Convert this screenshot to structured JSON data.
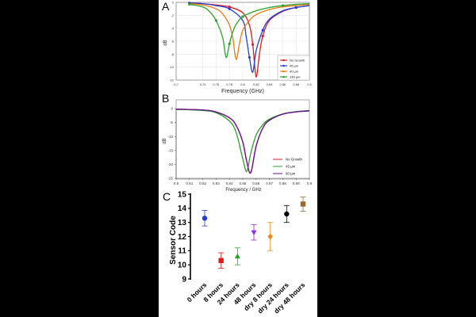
{
  "chart_data": [
    {
      "panel_label": "A",
      "type": "line",
      "xlabel": "Frequency (GHz)",
      "ylabel": "dB",
      "xlim": [
        0.7,
        0.9
      ],
      "ylim": [
        -12,
        0
      ],
      "xticks": [
        "0.7",
        "0.74",
        "0.76",
        "0.78",
        "0.8",
        "0.82",
        "0.84",
        "0.86",
        "0.88",
        "0.9"
      ],
      "yticks": [
        "0",
        "-2",
        "-4",
        "-6",
        "-8",
        "-10",
        "-12"
      ],
      "grid": true,
      "legend_position": "bottom-right",
      "series": [
        {
          "name": "No Growth",
          "color": "#e01b1b",
          "marker": "circle",
          "x": [
            0.72,
            0.74,
            0.76,
            0.78,
            0.8,
            0.81,
            0.815,
            0.82,
            0.825,
            0.83,
            0.84,
            0.86,
            0.88,
            0.9
          ],
          "y": [
            -0.1,
            -0.2,
            -0.4,
            -0.7,
            -1.6,
            -3.5,
            -6.5,
            -11.5,
            -8.0,
            -5.2,
            -2.8,
            -1.4,
            -0.8,
            -0.5
          ]
        },
        {
          "name": "45 µm",
          "color": "#1f3fd6",
          "marker": "circle",
          "x": [
            0.72,
            0.74,
            0.76,
            0.78,
            0.8,
            0.805,
            0.81,
            0.815,
            0.82,
            0.83,
            0.84,
            0.86,
            0.88,
            0.9
          ],
          "y": [
            -0.1,
            -0.2,
            -0.5,
            -1.0,
            -2.8,
            -5.2,
            -8.5,
            -10.8,
            -7.5,
            -4.3,
            -2.6,
            -1.3,
            -0.8,
            -0.5
          ]
        },
        {
          "name": "90 µm",
          "color": "#f07a10",
          "marker": "none",
          "x": [
            0.72,
            0.74,
            0.76,
            0.77,
            0.78,
            0.785,
            0.79,
            0.795,
            0.8,
            0.81,
            0.82,
            0.84,
            0.86,
            0.88,
            0.9
          ],
          "y": [
            -0.2,
            -0.4,
            -1.0,
            -1.8,
            -3.5,
            -5.5,
            -8.8,
            -6.4,
            -4.3,
            -2.8,
            -1.9,
            -1.1,
            -0.7,
            -0.5,
            -0.3
          ]
        },
        {
          "name": "145 µm",
          "color": "#28a428",
          "marker": "circle",
          "x": [
            0.72,
            0.74,
            0.75,
            0.76,
            0.77,
            0.775,
            0.78,
            0.785,
            0.79,
            0.8,
            0.82,
            0.84,
            0.86,
            0.88,
            0.9
          ],
          "y": [
            -0.3,
            -0.7,
            -1.4,
            -2.8,
            -5.5,
            -8.5,
            -6.4,
            -4.6,
            -3.4,
            -2.2,
            -1.3,
            -0.8,
            -0.5,
            -0.3,
            -0.2
          ]
        }
      ]
    },
    {
      "panel_label": "B",
      "type": "line",
      "xlabel": "Frequency / GHz",
      "ylabel": "dB",
      "xlim": [
        0.8,
        0.9
      ],
      "ylim": [
        -25,
        0
      ],
      "xticks": [
        "0.8",
        "0.81",
        "0.82",
        "0.83",
        "0.84",
        "0.85",
        "0.86",
        "0.87",
        "0.88",
        "0.89",
        "0.9"
      ],
      "yticks": [
        "0",
        "-5",
        "-10",
        "-15",
        "-20",
        "-25"
      ],
      "grid": false,
      "legend_position": "bottom-right",
      "series": [
        {
          "name": "No Growth",
          "color": "#e01b1b",
          "x": [
            0.8,
            0.82,
            0.83,
            0.84,
            0.845,
            0.85,
            0.853,
            0.856,
            0.86,
            0.865,
            0.87,
            0.88,
            0.89,
            0.9
          ],
          "y": [
            -0.2,
            -0.5,
            -1.2,
            -3.3,
            -6.0,
            -12.0,
            -19.0,
            -23.0,
            -13.5,
            -7.0,
            -4.2,
            -2.0,
            -1.2,
            -0.8
          ]
        },
        {
          "name": "45 µm",
          "color": "#2aa02a",
          "x": [
            0.8,
            0.82,
            0.83,
            0.84,
            0.845,
            0.85,
            0.853,
            0.856,
            0.86,
            0.865,
            0.87,
            0.88,
            0.89,
            0.9
          ],
          "y": [
            -0.3,
            -0.7,
            -1.5,
            -4.5,
            -8.5,
            -18.0,
            -22.5,
            -16.0,
            -9.5,
            -5.8,
            -3.8,
            -1.9,
            -1.1,
            -0.7
          ]
        },
        {
          "name": "90 µm",
          "color": "#6a0d9a",
          "x": [
            0.8,
            0.82,
            0.83,
            0.84,
            0.845,
            0.85,
            0.853,
            0.856,
            0.86,
            0.865,
            0.87,
            0.88,
            0.89,
            0.9
          ],
          "y": [
            -0.2,
            -0.5,
            -1.2,
            -3.3,
            -6.0,
            -12.0,
            -19.0,
            -23.0,
            -13.5,
            -7.0,
            -4.2,
            -2.0,
            -1.2,
            -0.8
          ]
        }
      ]
    },
    {
      "panel_label": "C",
      "type": "scatter",
      "xlabel": "",
      "ylabel": "Sensor Code",
      "ylim": [
        9,
        15
      ],
      "yticks": [
        "9",
        "10",
        "11",
        "12",
        "13",
        "14",
        "15"
      ],
      "grid": false,
      "categories": [
        "0 hours",
        "8 hours",
        "24 hours",
        "48 hours",
        "dry 8 hours",
        "dry 24 hours",
        "dry 48 hours"
      ],
      "points": [
        {
          "category": "0 hours",
          "value": 13.3,
          "error": 0.55,
          "color": "#1f3fd6",
          "marker": "circle"
        },
        {
          "category": "8 hours",
          "value": 10.3,
          "error": 0.55,
          "color": "#e01b1b",
          "marker": "square"
        },
        {
          "category": "24 hours",
          "value": 10.6,
          "error": 0.6,
          "color": "#28a428",
          "marker": "triangle-up"
        },
        {
          "category": "48 hours",
          "value": 12.3,
          "error": 0.55,
          "color": "#8a2be2",
          "marker": "triangle-down"
        },
        {
          "category": "dry 8 hours",
          "value": 12.0,
          "error": 1.0,
          "color": "#f08a20",
          "marker": "diamond"
        },
        {
          "category": "dry 24 hours",
          "value": 13.6,
          "error": 0.6,
          "color": "#000000",
          "marker": "circle"
        },
        {
          "category": "dry 48 hours",
          "value": 14.3,
          "error": 0.5,
          "color": "#a0662a",
          "marker": "square"
        }
      ]
    }
  ]
}
